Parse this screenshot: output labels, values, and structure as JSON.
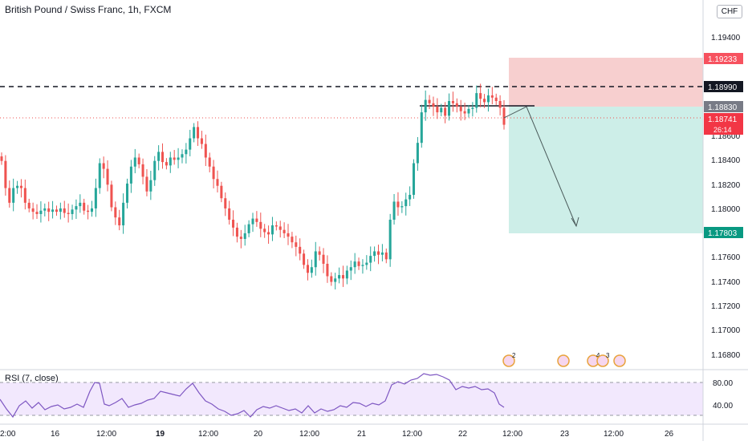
{
  "header": {
    "title": "British Pound / Swiss Franc, 1h, FXCM",
    "currency": "CHF"
  },
  "price_axis": {
    "ticks": [
      "1.19400",
      "1.18600",
      "1.18400",
      "1.18200",
      "1.18000",
      "1.17600",
      "1.17400",
      "1.17200",
      "1.17000",
      "1.16800"
    ],
    "badges": {
      "stop_loss": "1.19233",
      "resistance": "1.18990",
      "entry": "1.18830",
      "last_price": "1.18741",
      "countdown": "26:14",
      "take_profit": "1.17803"
    }
  },
  "time_axis": {
    "labels": [
      "2:00",
      "16",
      "12:00",
      "19",
      "12:00",
      "20",
      "12:00",
      "21",
      "12:00",
      "22",
      "12:00",
      "23",
      "12:00",
      "26"
    ]
  },
  "rsi": {
    "label": "RSI (7, close)",
    "ticks": [
      "80.00",
      "40.00"
    ]
  },
  "events": {
    "counts": [
      "2",
      "4",
      "3"
    ]
  },
  "colors": {
    "up": "#26a69a",
    "down": "#ef5350",
    "stop_zone": "#f7cfcf",
    "target_zone": "#cdeee8",
    "rsi_line": "#7e57c2",
    "rsi_band": "#f2e8fd"
  },
  "chart_data": {
    "type": "candlestick",
    "symbol": "GBPCHF",
    "timeframe": "1h",
    "y_range": [
      1.1668,
      1.1956
    ],
    "closes": [
      1.1842,
      1.1818,
      1.1805,
      1.1818,
      1.182,
      1.1818,
      1.1805,
      1.18,
      1.1797,
      1.1795,
      1.1798,
      1.18,
      1.1797,
      1.1799,
      1.1797,
      1.18,
      1.1796,
      1.1795,
      1.1799,
      1.1802,
      1.1805,
      1.1798,
      1.1797,
      1.18,
      1.1818,
      1.184,
      1.1835,
      1.1821,
      1.1801,
      1.1792,
      1.1785,
      1.1805,
      1.1822,
      1.1837,
      1.1845,
      1.1839,
      1.1828,
      1.1815,
      1.1825,
      1.1842,
      1.185,
      1.1841,
      1.1838,
      1.1845,
      1.1843,
      1.1845,
      1.1848,
      1.1852,
      1.1862,
      1.1872,
      1.1862,
      1.1857,
      1.1845,
      1.1837,
      1.1826,
      1.182,
      1.1809,
      1.18,
      1.179,
      1.1783,
      1.1775,
      1.1773,
      1.1778,
      1.1786,
      1.1791,
      1.1788,
      1.1782,
      1.1779,
      1.1777,
      1.1785,
      1.1784,
      1.1781,
      1.1778,
      1.1775,
      1.177,
      1.1766,
      1.176,
      1.175,
      1.1743,
      1.1748,
      1.1762,
      1.1759,
      1.1751,
      1.174,
      1.1735,
      1.1738,
      1.1741,
      1.1738,
      1.1745,
      1.1748,
      1.1753,
      1.1749,
      1.175,
      1.1752,
      1.1758,
      1.1762,
      1.1759,
      1.1761,
      1.1755,
      1.179,
      1.1806,
      1.1801,
      1.1802,
      1.1808,
      1.1812,
      1.184,
      1.1858,
      1.1885,
      1.1896,
      1.1893,
      1.189,
      1.1885,
      1.1889,
      1.1882,
      1.1895,
      1.1893,
      1.189,
      1.1886,
      1.1884,
      1.1888,
      1.1889,
      1.1902,
      1.1897,
      1.1894,
      1.19,
      1.1898,
      1.1895,
      1.1889,
      1.1874
    ]
  }
}
